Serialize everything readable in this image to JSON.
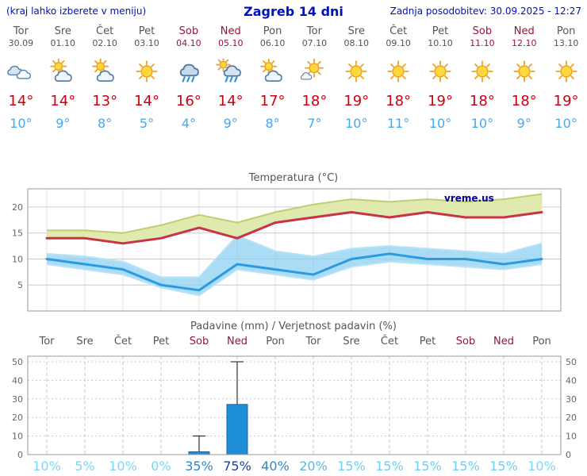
{
  "header": {
    "hint": "(kraj lahko izberete v meniju)",
    "title": "Zagreb 14 dni",
    "updated": "Zadnja posodobitev: 30.09.2025 - 12:27"
  },
  "watermark": "vreme.us",
  "colors": {
    "header_text": "#0011bb",
    "weekday_text": "#555555",
    "weekend_text": "#9e1335",
    "high_temp": "#cc0011",
    "low_temp": "#45a9ef"
  },
  "days": [
    {
      "name": "Tor",
      "date": "30.09",
      "icon": "cloudy",
      "high": "14°",
      "low": "10°",
      "weekend": false
    },
    {
      "name": "Sre",
      "date": "01.10",
      "icon": "partly-cloudy",
      "high": "14°",
      "low": "9°",
      "weekend": false
    },
    {
      "name": "Čet",
      "date": "02.10",
      "icon": "partly-cloudy",
      "high": "13°",
      "low": "8°",
      "weekend": false
    },
    {
      "name": "Pet",
      "date": "03.10",
      "icon": "sunny",
      "high": "14°",
      "low": "5°",
      "weekend": false
    },
    {
      "name": "Sob",
      "date": "04.10",
      "icon": "rain",
      "high": "16°",
      "low": "4°",
      "weekend": true
    },
    {
      "name": "Ned",
      "date": "05.10",
      "icon": "rain-sun",
      "high": "14°",
      "low": "9°",
      "weekend": true
    },
    {
      "name": "Pon",
      "date": "06.10",
      "icon": "partly-cloudy",
      "high": "17°",
      "low": "8°",
      "weekend": false
    },
    {
      "name": "Tor",
      "date": "07.10",
      "icon": "mostly-sunny",
      "high": "18°",
      "low": "7°",
      "weekend": false
    },
    {
      "name": "Sre",
      "date": "08.10",
      "icon": "sunny",
      "high": "19°",
      "low": "10°",
      "weekend": false
    },
    {
      "name": "Čet",
      "date": "09.10",
      "icon": "sunny",
      "high": "18°",
      "low": "11°",
      "weekend": false
    },
    {
      "name": "Pet",
      "date": "10.10",
      "icon": "sunny",
      "high": "19°",
      "low": "10°",
      "weekend": false
    },
    {
      "name": "Sob",
      "date": "11.10",
      "icon": "sunny",
      "high": "18°",
      "low": "10°",
      "weekend": true
    },
    {
      "name": "Ned",
      "date": "12.10",
      "icon": "sunny",
      "high": "18°",
      "low": "9°",
      "weekend": true
    },
    {
      "name": "Pon",
      "date": "13.10",
      "icon": "sunny",
      "high": "19°",
      "low": "10°",
      "weekend": false
    }
  ],
  "chart_data": [
    {
      "type": "line",
      "title": "Temperatura (°C)",
      "ylim": [
        0,
        23.5
      ],
      "yticks": [
        5,
        10,
        15,
        20
      ],
      "x_count": 14,
      "series": [
        {
          "name": "max",
          "color": "#c93247",
          "width": 3,
          "values": [
            14,
            14,
            13,
            14,
            16,
            14,
            17,
            18,
            19,
            18,
            19,
            18,
            18,
            19
          ]
        },
        {
          "name": "min",
          "color": "#2b9be0",
          "width": 3,
          "values": [
            10,
            9,
            8,
            5,
            4,
            9,
            8,
            7,
            10,
            11,
            10,
            10,
            9,
            10
          ]
        }
      ],
      "bands": [
        {
          "name": "max-range",
          "fill": "#e0eaae",
          "edge": "#bdd06e",
          "opacity": 1,
          "upper": [
            15.5,
            15.5,
            15,
            16.5,
            18.5,
            17,
            19,
            20.5,
            21.5,
            21,
            21.5,
            21,
            21.5,
            22.5
          ],
          "lower": "max"
        },
        {
          "name": "min-range",
          "fill": "#8ed0f2",
          "edge": "#b9e2f7",
          "opacity": 0.75,
          "upper": [
            11,
            10.5,
            9.5,
            6.5,
            6.5,
            14.5,
            11.5,
            10.5,
            12,
            12.5,
            12,
            11.5,
            11,
            13
          ],
          "lower": [
            9,
            8,
            7,
            4.5,
            3,
            8,
            7,
            6,
            8.5,
            9.5,
            9,
            8.5,
            8,
            9
          ]
        }
      ]
    },
    {
      "type": "bar",
      "title": "Padavine (mm) / Verjetnost padavin (%)",
      "ylim": [
        0,
        53
      ],
      "yticks": [
        0,
        10,
        20,
        30,
        40,
        50
      ],
      "x_count": 14,
      "day_labels": [
        {
          "label": "Tor",
          "weekend": false
        },
        {
          "label": "Sre",
          "weekend": false
        },
        {
          "label": "Čet",
          "weekend": false
        },
        {
          "label": "Pet",
          "weekend": false
        },
        {
          "label": "Sob",
          "weekend": true
        },
        {
          "label": "Ned",
          "weekend": true
        },
        {
          "label": "Pon",
          "weekend": false
        },
        {
          "label": "Tor",
          "weekend": false
        },
        {
          "label": "Sre",
          "weekend": false
        },
        {
          "label": "Čet",
          "weekend": false
        },
        {
          "label": "Pet",
          "weekend": false
        },
        {
          "label": "Sob",
          "weekend": true
        },
        {
          "label": "Ned",
          "weekend": true
        },
        {
          "label": "Pon",
          "weekend": false
        }
      ],
      "values": [
        0,
        0,
        0,
        0,
        1.5,
        27,
        0,
        0,
        0,
        0,
        0,
        0,
        0,
        0
      ],
      "whiskers": [
        0,
        0,
        0,
        0,
        10,
        50,
        0,
        0,
        0,
        0,
        0,
        0,
        0,
        0
      ],
      "bar_color": "#1f8ed8",
      "bar_edge": "#13679f",
      "probabilities": [
        {
          "label": "10%",
          "color": "#7cd6f2"
        },
        {
          "label": "5%",
          "color": "#7cd6f2"
        },
        {
          "label": "10%",
          "color": "#7cd6f2"
        },
        {
          "label": "0%",
          "color": "#7cd6f2"
        },
        {
          "label": "35%",
          "color": "#2e86c8"
        },
        {
          "label": "75%",
          "color": "#1b3fa0"
        },
        {
          "label": "40%",
          "color": "#2e86c8"
        },
        {
          "label": "20%",
          "color": "#55b8e4"
        },
        {
          "label": "15%",
          "color": "#6fcdee"
        },
        {
          "label": "15%",
          "color": "#6fcdee"
        },
        {
          "label": "15%",
          "color": "#6fcdee"
        },
        {
          "label": "15%",
          "color": "#6fcdee"
        },
        {
          "label": "15%",
          "color": "#6fcdee"
        },
        {
          "label": "10%",
          "color": "#7cd6f2"
        }
      ]
    }
  ]
}
